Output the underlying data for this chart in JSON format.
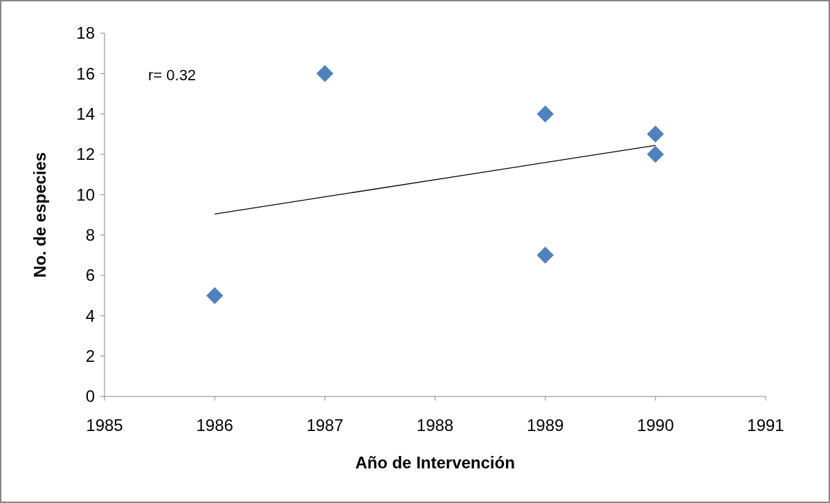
{
  "chart_data": {
    "type": "scatter",
    "xlabel": "Año de Intervención",
    "ylabel": "No. de especies",
    "annotations": [
      "r= 0.32"
    ],
    "xlim": [
      1985,
      1991
    ],
    "xticks": [
      1985,
      1986,
      1987,
      1988,
      1989,
      1990,
      1991
    ],
    "ylim": [
      0,
      18
    ],
    "yticks": [
      0,
      2,
      4,
      6,
      8,
      10,
      12,
      14,
      16,
      18
    ],
    "grid": false,
    "marker": "diamond",
    "series": [
      {
        "color": "#4f81bd",
        "x": [
          1986,
          1987,
          1989,
          1989,
          1990,
          1990
        ],
        "values": [
          5,
          16,
          14,
          7,
          13,
          12
        ]
      },
      {
        "type": "line",
        "color": "#000000",
        "marker": "none",
        "x": [
          1986,
          1990
        ],
        "values": [
          9.04,
          12.44
        ]
      }
    ]
  }
}
